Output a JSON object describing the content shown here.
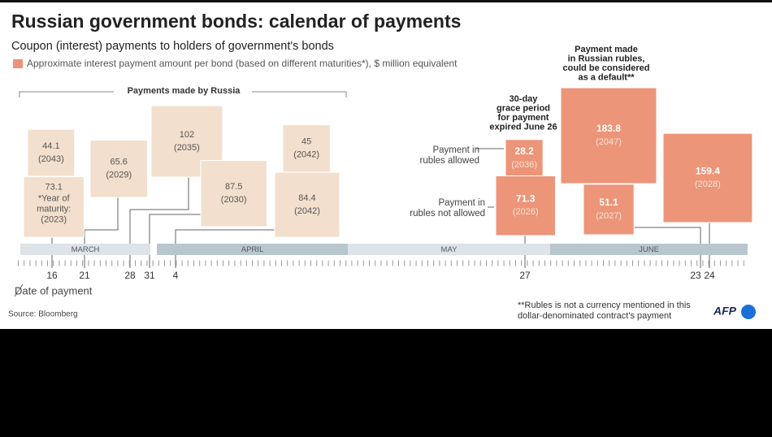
{
  "title": "Russian government bonds: calendar of payments",
  "subtitle": "Coupon (interest) payments to holders of government's bonds",
  "legend": "Approximate interest payment amount per bond (based on different maturities*), $ million equivalent",
  "bracket_label": "Payments made by Russia",
  "grace_note": [
    "30-day",
    "grace period",
    "for payment",
    "expired June 26"
  ],
  "default_note": [
    "Payment made",
    "in Russian rubles,",
    "could be considered",
    "as a default**"
  ],
  "rubles_allowed": [
    "Payment in",
    "rubles allowed"
  ],
  "rubles_not_allowed": [
    "Payment in",
    "rubles not allowed"
  ],
  "date_label": "Date of payment",
  "source": "Source: Bloomberg",
  "footnote": [
    "**Rubles is not a currency mentioned in this",
    "dollar-denominated contract's payment"
  ],
  "logo": "AFP",
  "chart_data": {
    "type": "calendar",
    "months": [
      "MARCH",
      "APRIL",
      "MAY",
      "JUNE"
    ],
    "days": [
      16,
      21,
      28,
      31,
      4,
      27,
      23,
      24
    ],
    "payments": [
      {
        "value": 44.1,
        "maturity": "(2043)",
        "color": "#f3dfcd"
      },
      {
        "value": 73.1,
        "note": [
          "*Year of",
          "maturity:"
        ],
        "maturity": "(2023)",
        "color": "#f3dfcd"
      },
      {
        "value": 65.6,
        "maturity": "(2029)",
        "color": "#f3dfcd"
      },
      {
        "value": 102,
        "maturity": "(2035)",
        "color": "#f3dfcd"
      },
      {
        "value": 87.5,
        "maturity": "(2030)",
        "color": "#f3dfcd"
      },
      {
        "value": 45,
        "maturity": "(2042)",
        "color": "#f3dfcd"
      },
      {
        "value": 84.4,
        "maturity": "(2042)",
        "color": "#f3dfcd"
      },
      {
        "value": 28.2,
        "maturity": "(2036)",
        "color": "#ec9578"
      },
      {
        "value": 71.3,
        "maturity": "(2026)",
        "color": "#ec9578"
      },
      {
        "value": 183.8,
        "maturity": "(2047)",
        "color": "#ec9578"
      },
      {
        "value": 51.1,
        "maturity": "(2027)",
        "color": "#ec9578"
      },
      {
        "value": 159.4,
        "maturity": "(2028)",
        "color": "#ec9578"
      }
    ]
  }
}
